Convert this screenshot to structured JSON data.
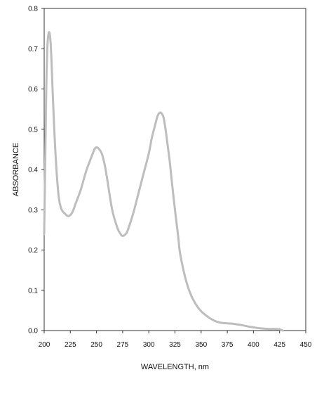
{
  "chart_data": {
    "type": "line",
    "title": "",
    "xlabel": "WAVELENGTH, nm",
    "ylabel": "ABSORBANCE",
    "xlim": [
      200,
      450
    ],
    "ylim": [
      0.0,
      0.8
    ],
    "xticks": [
      200,
      225,
      250,
      275,
      300,
      325,
      350,
      375,
      400,
      425,
      450
    ],
    "yticks": [
      0.0,
      0.1,
      0.2,
      0.3,
      0.4,
      0.5,
      0.6,
      0.7,
      0.8
    ],
    "ytick_labels": [
      "0.0",
      "0.1",
      "0.2",
      "0.3",
      "0.4",
      "0.5",
      "0.6",
      "0.7",
      "0.8"
    ],
    "grid": false,
    "legend": "none",
    "line_color": "#bdbdbd",
    "series": [
      {
        "x": [
          200,
          201,
          202,
          203,
          204,
          205,
          206,
          207,
          208,
          210,
          212,
          214,
          216,
          218,
          220,
          222,
          224,
          226,
          228,
          230,
          235,
          240,
          245,
          248,
          250,
          252,
          255,
          258,
          260,
          265,
          270,
          273,
          275,
          278,
          280,
          285,
          290,
          295,
          300,
          303,
          306,
          308,
          310,
          312,
          314,
          316,
          318,
          320,
          322,
          325,
          328,
          330,
          335,
          340,
          345,
          350,
          355,
          360,
          365,
          370,
          375,
          380,
          385,
          390,
          395,
          400,
          405,
          410,
          415,
          420,
          425,
          428
        ],
        "y": [
          0.24,
          0.42,
          0.6,
          0.7,
          0.735,
          0.74,
          0.72,
          0.67,
          0.6,
          0.48,
          0.39,
          0.33,
          0.305,
          0.295,
          0.29,
          0.285,
          0.285,
          0.29,
          0.3,
          0.315,
          0.35,
          0.395,
          0.43,
          0.45,
          0.455,
          0.452,
          0.44,
          0.41,
          0.38,
          0.3,
          0.255,
          0.24,
          0.235,
          0.24,
          0.25,
          0.29,
          0.34,
          0.39,
          0.44,
          0.48,
          0.51,
          0.53,
          0.54,
          0.54,
          0.53,
          0.5,
          0.46,
          0.42,
          0.37,
          0.3,
          0.235,
          0.19,
          0.13,
          0.09,
          0.065,
          0.048,
          0.037,
          0.028,
          0.022,
          0.019,
          0.018,
          0.017,
          0.015,
          0.013,
          0.01,
          0.008,
          0.006,
          0.005,
          0.004,
          0.004,
          0.003,
          0.0
        ]
      }
    ]
  }
}
